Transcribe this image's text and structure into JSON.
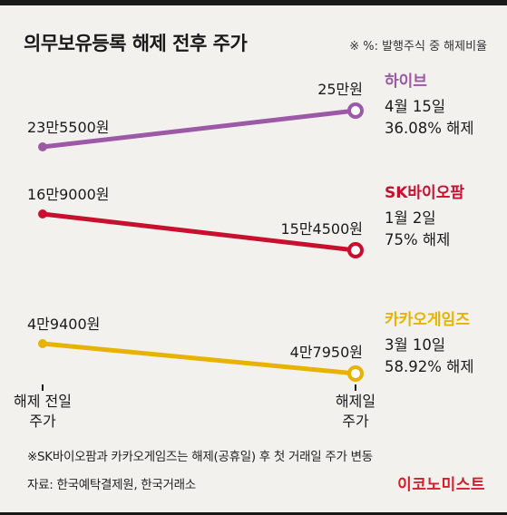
{
  "title": "의무보유등록 해제 전후 주가",
  "note": "※ %: 발행주식 중 해제비율",
  "chart_data": {
    "type": "line",
    "x": [
      "해제 전일|주가",
      "해제일|주가"
    ],
    "series": [
      {
        "name": "하이브",
        "values": [
          235500,
          250000
        ],
        "labels": [
          "23만5500원",
          "25만원"
        ],
        "date": "4월 15일",
        "release": "36.08% 해제",
        "color": "#9b59a6"
      },
      {
        "name": "SK바이오팜",
        "values": [
          169000,
          154500
        ],
        "labels": [
          "16만9000원",
          "15만4500원"
        ],
        "date": "1월 2일",
        "release": "75% 해제",
        "color": "#c8102e"
      },
      {
        "name": "카카오게임즈",
        "values": [
          49400,
          47950
        ],
        "labels": [
          "4만9400원",
          "4만7950원"
        ],
        "date": "3월 10일",
        "release": "58.92% 해제",
        "color": "#e8b300"
      }
    ]
  },
  "footnote": "※SK바이오팜과 카카오게임즈는 해제(공휴일) 후 첫 거래일 주가 변동",
  "source": "자료: 한국예탁결제원, 한국거래소",
  "brand": "이코노미스트"
}
